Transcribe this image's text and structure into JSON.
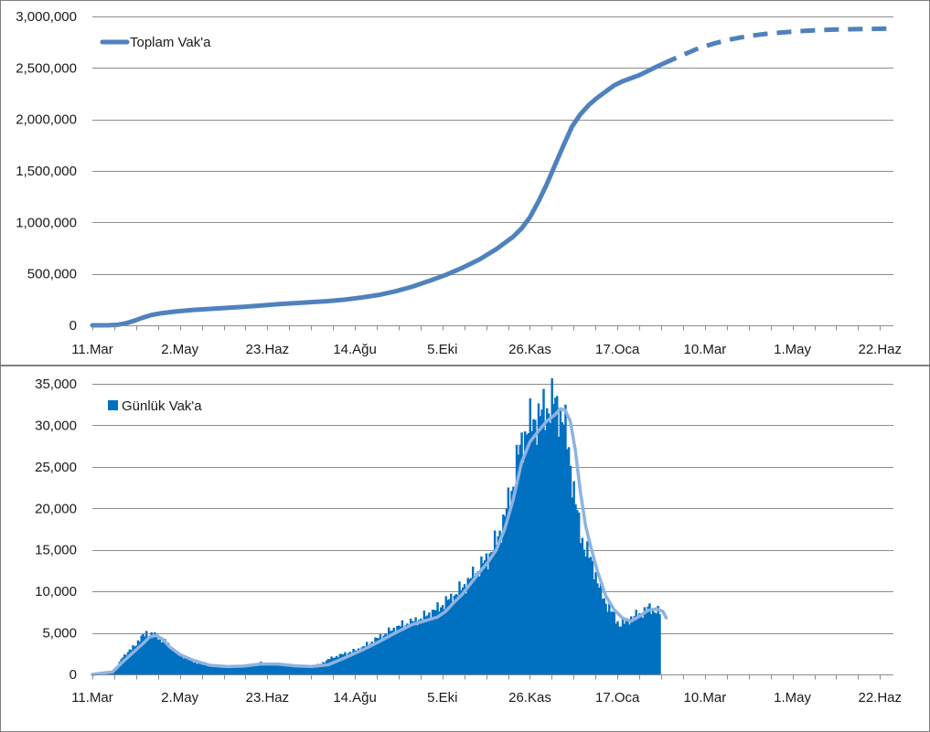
{
  "chart_data": [
    {
      "type": "line",
      "title": "",
      "xlabel": "",
      "ylabel": "",
      "legend": {
        "position": "top-left",
        "entries": [
          "Toplam Vak'a"
        ]
      },
      "grid": true,
      "x_tick_labels": [
        "11.Mar",
        "2.May",
        "23.Haz",
        "14.Ağu",
        "5.Eki",
        "26.Kas",
        "17.Oca",
        "10.Mar",
        "1.May",
        "22.Haz"
      ],
      "x_tick_days": [
        0,
        52,
        104,
        156,
        208,
        260,
        312,
        364,
        416,
        468
      ],
      "xlim_days": [
        0,
        476
      ],
      "ylim": [
        0,
        3000000
      ],
      "y_ticks": [
        0,
        500000,
        1000000,
        1500000,
        2000000,
        2500000,
        3000000
      ],
      "y_tick_labels": [
        "0",
        "500,000",
        "1,000,000",
        "1,500,000",
        "2,000,000",
        "2,500,000",
        "3,000,000"
      ],
      "series": [
        {
          "name": "Toplam Vak'a",
          "color": "#4f81bd",
          "style": "solid",
          "points": [
            [
              0,
              0
            ],
            [
              10,
              1000
            ],
            [
              15,
              5000
            ],
            [
              20,
              20000
            ],
            [
              25,
              45000
            ],
            [
              30,
              75000
            ],
            [
              35,
              100000
            ],
            [
              40,
              115000
            ],
            [
              50,
              135000
            ],
            [
              60,
              150000
            ],
            [
              70,
              160000
            ],
            [
              80,
              170000
            ],
            [
              90,
              180000
            ],
            [
              100,
              192000
            ],
            [
              110,
              205000
            ],
            [
              120,
              215000
            ],
            [
              130,
              225000
            ],
            [
              140,
              235000
            ],
            [
              150,
              250000
            ],
            [
              160,
              270000
            ],
            [
              170,
              295000
            ],
            [
              180,
              330000
            ],
            [
              190,
              375000
            ],
            [
              200,
              430000
            ],
            [
              210,
              490000
            ],
            [
              220,
              560000
            ],
            [
              230,
              640000
            ],
            [
              240,
              740000
            ],
            [
              250,
              860000
            ],
            [
              255,
              940000
            ],
            [
              260,
              1050000
            ],
            [
              265,
              1200000
            ],
            [
              270,
              1370000
            ],
            [
              275,
              1560000
            ],
            [
              280,
              1750000
            ],
            [
              285,
              1930000
            ],
            [
              290,
              2050000
            ],
            [
              295,
              2140000
            ],
            [
              300,
              2210000
            ],
            [
              305,
              2270000
            ],
            [
              310,
              2330000
            ],
            [
              315,
              2370000
            ],
            [
              320,
              2400000
            ],
            [
              325,
              2430000
            ],
            [
              330,
              2470000
            ],
            [
              335,
              2510000
            ],
            [
              339,
              2540000
            ]
          ]
        },
        {
          "name": "",
          "color": "#4f81bd",
          "style": "dashed",
          "points": [
            [
              339,
              2540000
            ],
            [
              350,
              2620000
            ],
            [
              360,
              2690000
            ],
            [
              370,
              2740000
            ],
            [
              380,
              2780000
            ],
            [
              390,
              2810000
            ],
            [
              400,
              2830000
            ],
            [
              410,
              2845000
            ],
            [
              420,
              2857000
            ],
            [
              430,
              2866000
            ],
            [
              440,
              2872000
            ],
            [
              450,
              2876000
            ],
            [
              460,
              2879000
            ],
            [
              476,
              2882000
            ]
          ]
        }
      ]
    },
    {
      "type": "bar",
      "title": "",
      "xlabel": "",
      "ylabel": "",
      "legend": {
        "position": "top-left",
        "entries": [
          "Günlük Vak'a"
        ]
      },
      "grid": true,
      "x_tick_labels": [
        "11.Mar",
        "2.May",
        "23.Haz",
        "14.Ağu",
        "5.Eki",
        "26.Kas",
        "17.Oca",
        "10.Mar",
        "1.May",
        "22.Haz"
      ],
      "x_tick_days": [
        0,
        52,
        104,
        156,
        208,
        260,
        312,
        364,
        416,
        468
      ],
      "xlim_days": [
        0,
        476
      ],
      "ylim": [
        0,
        35000
      ],
      "y_ticks": [
        0,
        5000,
        10000,
        15000,
        20000,
        25000,
        30000,
        35000
      ],
      "y_tick_labels": [
        "0",
        "5,000",
        "10,000",
        "15,000",
        "20,000",
        "25,000",
        "30,000",
        "35,000"
      ],
      "bar_color": "#0070c0",
      "bars": {
        "start_day": 0,
        "end_day": 337,
        "anchor_days": [
          0,
          8,
          12,
          15,
          18,
          22,
          25,
          28,
          30,
          32,
          35,
          38,
          40,
          43,
          46,
          50,
          55,
          60,
          65,
          70,
          75,
          80,
          85,
          90,
          95,
          100,
          105,
          110,
          115,
          120,
          125,
          130,
          135,
          140,
          145,
          150,
          155,
          160,
          165,
          170,
          175,
          180,
          185,
          190,
          195,
          200,
          205,
          210,
          215,
          220,
          225,
          230,
          235,
          240,
          245,
          250,
          253,
          256,
          259,
          262,
          265,
          268,
          271,
          274,
          277,
          280,
          283,
          286,
          289,
          292,
          295,
          298,
          301,
          304,
          307,
          310,
          313,
          316,
          319,
          322,
          325,
          328,
          331,
          334,
          337
        ],
        "anchor_values": [
          0,
          100,
          400,
          1000,
          2200,
          2800,
          3500,
          4200,
          4600,
          5000,
          4800,
          4600,
          4300,
          4000,
          3300,
          2600,
          2000,
          1500,
          1200,
          1100,
          1000,
          900,
          950,
          1000,
          1200,
          1400,
          1300,
          1200,
          1100,
          1000,
          950,
          1000,
          1200,
          1800,
          2200,
          2500,
          2800,
          3200,
          3800,
          4400,
          5000,
          5600,
          6000,
          6300,
          6700,
          7300,
          7900,
          8700,
          9500,
          10500,
          11600,
          12800,
          14100,
          16000,
          19000,
          23000,
          26500,
          28500,
          29700,
          30500,
          31000,
          31600,
          32200,
          32800,
          32000,
          30500,
          27000,
          22000,
          18000,
          15500,
          14200,
          12800,
          10500,
          9000,
          8000,
          7000,
          6000,
          6200,
          6700,
          7000,
          7200,
          7600,
          8000,
          7800,
          7400
        ]
      },
      "series": [
        {
          "name": "",
          "color": "#8db3e2",
          "style": "solid",
          "points": [
            [
              0,
              0
            ],
            [
              12,
              300
            ],
            [
              18,
              1500
            ],
            [
              24,
              2600
            ],
            [
              30,
              3700
            ],
            [
              34,
              4500
            ],
            [
              38,
              4700
            ],
            [
              42,
              4200
            ],
            [
              46,
              3300
            ],
            [
              52,
              2400
            ],
            [
              60,
              1700
            ],
            [
              70,
              1100
            ],
            [
              80,
              950
            ],
            [
              90,
              1000
            ],
            [
              100,
              1250
            ],
            [
              110,
              1250
            ],
            [
              120,
              1050
            ],
            [
              130,
              950
            ],
            [
              140,
              1150
            ],
            [
              150,
              2000
            ],
            [
              160,
              2900
            ],
            [
              170,
              3900
            ],
            [
              180,
              5000
            ],
            [
              190,
              6000
            ],
            [
              200,
              6600
            ],
            [
              205,
              6900
            ],
            [
              210,
              7600
            ],
            [
              215,
              8700
            ],
            [
              220,
              9700
            ],
            [
              225,
              11000
            ],
            [
              230,
              12300
            ],
            [
              235,
              13500
            ],
            [
              240,
              15000
            ],
            [
              245,
              17500
            ],
            [
              250,
              21000
            ],
            [
              255,
              25500
            ],
            [
              260,
              28000
            ],
            [
              265,
              29300
            ],
            [
              270,
              30500
            ],
            [
              275,
              31300
            ],
            [
              278,
              32000
            ],
            [
              281,
              31800
            ],
            [
              284,
              30500
            ],
            [
              287,
              27000
            ],
            [
              290,
              22000
            ],
            [
              293,
              18000
            ],
            [
              296,
              15500
            ],
            [
              300,
              12500
            ],
            [
              305,
              9500
            ],
            [
              310,
              7800
            ],
            [
              315,
              6800
            ],
            [
              320,
              6400
            ],
            [
              325,
              7000
            ],
            [
              330,
              7700
            ],
            [
              335,
              7900
            ],
            [
              339,
              7600
            ],
            [
              341,
              6800
            ]
          ]
        }
      ]
    }
  ]
}
